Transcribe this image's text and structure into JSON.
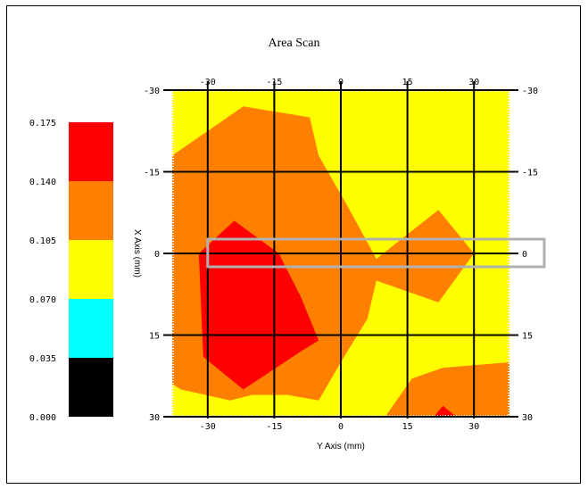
{
  "chart_data": {
    "type": "heatmap",
    "title": "Area Scan",
    "xlabel": "Y Axis (mm)",
    "ylabel": "X Axis (mm)",
    "xlim": [
      -38,
      38
    ],
    "ylim": [
      -30,
      30
    ],
    "x_ticks": [
      "-30",
      "-15",
      "0",
      "15",
      "30"
    ],
    "y_ticks": [
      "-30",
      "-15",
      "0",
      "15",
      "30"
    ],
    "grid": true,
    "colorbar": {
      "placement": "left",
      "tick_labels": [
        "0.000",
        "0.035",
        "0.070",
        "0.105",
        "0.140",
        "0.175"
      ],
      "levels": [
        {
          "from": 0.0,
          "to": 0.035,
          "color": "#000000"
        },
        {
          "from": 0.035,
          "to": 0.07,
          "color": "#00ffff"
        },
        {
          "from": 0.07,
          "to": 0.105,
          "color": "#ffff00"
        },
        {
          "from": 0.105,
          "to": 0.14,
          "color": "#ff8000"
        },
        {
          "from": 0.14,
          "to": 0.175,
          "color": "#ff0000"
        }
      ]
    },
    "regions": [
      {
        "level": "0.105-0.140",
        "color": "#ff8000",
        "points": [
          [
            -38,
            -18
          ],
          [
            -22,
            -27
          ],
          [
            -7,
            -25
          ],
          [
            -5,
            -18
          ],
          [
            2,
            -8
          ],
          [
            8,
            1
          ],
          [
            22,
            -8
          ],
          [
            30,
            0
          ],
          [
            22,
            9
          ],
          [
            8,
            5
          ],
          [
            6,
            12
          ],
          [
            0,
            20
          ],
          [
            -5,
            27
          ],
          [
            -12,
            26
          ],
          [
            -20,
            26
          ],
          [
            -25,
            27
          ],
          [
            -36,
            25
          ],
          [
            -38,
            24
          ]
        ]
      },
      {
        "level": "0.140-0.175",
        "color": "#ff0000",
        "points": [
          [
            -24,
            -6
          ],
          [
            -14,
            0
          ],
          [
            -9,
            8
          ],
          [
            -5,
            16
          ],
          [
            -9,
            18
          ],
          [
            -22,
            25
          ],
          [
            -31,
            19
          ],
          [
            -32,
            0
          ]
        ]
      },
      {
        "level": "0.105-0.140",
        "color": "#ff8000",
        "points": [
          [
            10,
            30
          ],
          [
            16,
            23
          ],
          [
            23,
            21
          ],
          [
            38,
            20
          ],
          [
            38,
            30
          ]
        ]
      },
      {
        "level": "0.140-0.175",
        "color": "#ff0000",
        "points": [
          [
            21,
            30
          ],
          [
            23,
            28
          ],
          [
            26,
            30
          ]
        ]
      }
    ],
    "marker_row": {
      "y": 0,
      "x_from": -30,
      "x_to": 38,
      "label": "0"
    }
  }
}
